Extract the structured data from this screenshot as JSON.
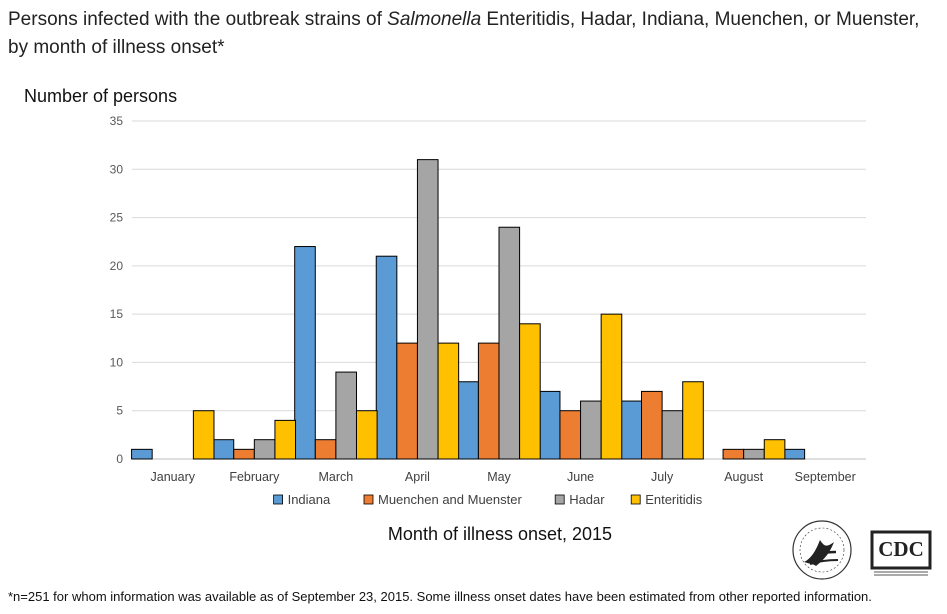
{
  "title": {
    "part1": "Persons infected with the outbreak strains of ",
    "italic": "Salmonella",
    "part2": " Enteritidis, Hadar, Indiana, Muenchen, or Muenster, by month of illness onset*"
  },
  "footnote": "*n=251 for whom information was available as of September 23, 2015. Some illness onset dates have been estimated from other reported information.",
  "logos": {
    "hhs": "hhs-eagle-seal",
    "cdc_text": "CDC"
  },
  "chart_data": {
    "type": "bar",
    "title": "Persons infected with the outbreak strains of Salmonella Enteritidis, Hadar, Indiana, Muenchen, or Muenster, by month of illness onset*",
    "ylabel": "Number of persons",
    "xlabel": "Month of illness onset, 2015",
    "ylim": [
      0,
      35
    ],
    "yticks": [
      0,
      5,
      10,
      15,
      20,
      25,
      30,
      35
    ],
    "grid": true,
    "legend": "bottom",
    "categories": [
      "January",
      "February",
      "March",
      "April",
      "May",
      "June",
      "July",
      "August",
      "September"
    ],
    "series": [
      {
        "name": "Indiana",
        "color": "#5B9BD5",
        "values": [
          1,
          2,
          22,
          21,
          8,
          7,
          6,
          0,
          1
        ]
      },
      {
        "name": "Muenchen and Muenster",
        "color": "#ED7D31",
        "values": [
          0,
          1,
          2,
          12,
          12,
          5,
          7,
          1,
          0
        ]
      },
      {
        "name": "Hadar",
        "color": "#A5A5A5",
        "values": [
          0,
          2,
          9,
          31,
          24,
          6,
          5,
          1,
          0
        ]
      },
      {
        "name": "Enteritidis",
        "color": "#FFC000",
        "values": [
          5,
          4,
          5,
          12,
          14,
          15,
          8,
          2,
          0
        ]
      }
    ]
  }
}
